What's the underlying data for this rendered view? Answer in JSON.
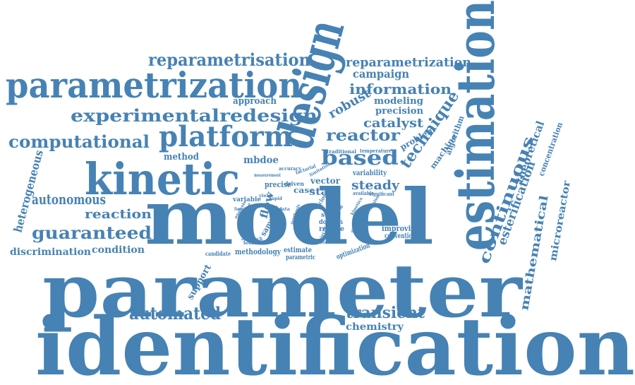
{
  "palette": {
    "word": "#4682b4",
    "background": "#ffffff"
  },
  "words": [
    "identification",
    "parameter",
    "model",
    "estimation",
    "design",
    "kinetic",
    "parametrization",
    "platform",
    "experimentalredesign",
    "reparametrisation",
    "reparametrization",
    "information",
    "campaign",
    "computational",
    "based",
    "reactor",
    "technique",
    "continuous",
    "robust",
    "catalyst",
    "precision",
    "modeling",
    "problem",
    "approach",
    "steady",
    "state",
    "transient",
    "automated",
    "guaranteed",
    "autonomous",
    "reaction",
    "heterogeneous",
    "discrimination",
    "condition",
    "chemistry",
    "esterification",
    "mathematical",
    "microreactor",
    "theoretical",
    "concentration",
    "machine",
    "algorithm",
    "method",
    "mbdoe",
    "support",
    "vector",
    "improving",
    "conventional",
    "flow",
    "precise",
    "variable",
    "variability",
    "estimate",
    "methodology",
    "parametric",
    "optimization",
    "candidate",
    "reduce",
    "domain",
    "study",
    "sample",
    "case",
    "driven",
    "traditional",
    "temperature",
    "accuracy",
    "factorial",
    "available",
    "significant",
    "objective",
    "bounds",
    "function",
    "rapid",
    "closed",
    "loop",
    "sensor",
    "analysis",
    "yield",
    "data",
    "test",
    "kinetics",
    "simulation",
    "measurement",
    "limitation",
    "synthesis",
    "space",
    "user",
    "rate",
    "time",
    "approach",
    "mechanism"
  ]
}
